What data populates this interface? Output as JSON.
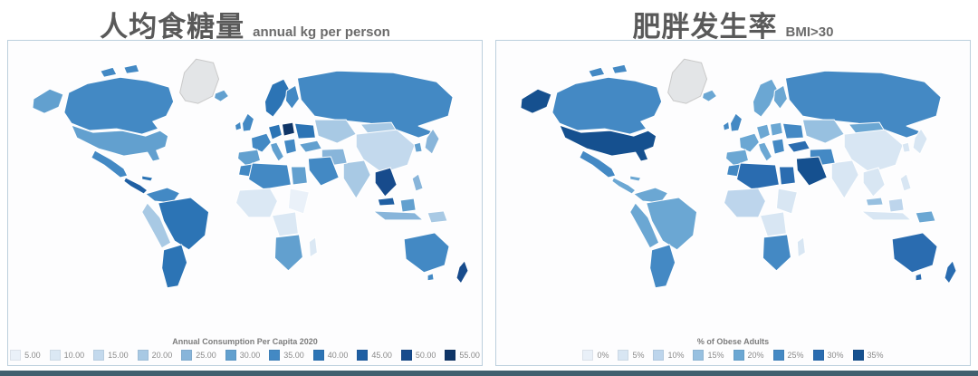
{
  "theme": {
    "background": "#ffffff",
    "panel_border": "#bcd0dd",
    "title_color": "#595959",
    "legend_text_color": "#7c7c7c",
    "no_data_color": "#e3e5e7",
    "bottom_bar_color": "#41606f"
  },
  "chart_data": [
    {
      "type": "choropleth",
      "title": "人均食糖量",
      "subtitle": "annual kg per person",
      "legend_title": "Annual Consumption Per Capita 2020",
      "legend_position": "bottom",
      "bins": [
        {
          "label": "5.00",
          "color": "#eaf1f9"
        },
        {
          "label": "10.00",
          "color": "#dbe8f4"
        },
        {
          "label": "15.00",
          "color": "#c3d9ed"
        },
        {
          "label": "20.00",
          "color": "#a8c9e4"
        },
        {
          "label": "25.00",
          "color": "#88b5da"
        },
        {
          "label": "30.00",
          "color": "#62a0cf"
        },
        {
          "label": "35.00",
          "color": "#4389c4"
        },
        {
          "label": "40.00",
          "color": "#2c74b5"
        },
        {
          "label": "45.00",
          "color": "#1f5fa3"
        },
        {
          "label": "50.00",
          "color": "#174b8c"
        },
        {
          "label": "55.00",
          "color": "#0f3567"
        }
      ],
      "no_data_regions": [
        "greenland"
      ],
      "values": {
        "greenland": null,
        "iceland": 30,
        "canada": 35,
        "canada-arctic-1": 35,
        "canada-arctic-2": 35,
        "alaska": 30,
        "usa": 30,
        "mexico": 35,
        "central-america": 45,
        "caribbean": 40,
        "colombia-venezuela": 35,
        "brazil": 40,
        "andes": 20,
        "argentina-chile": 40,
        "uk": 35,
        "ireland": 35,
        "scandinavia": 40,
        "finland": 35,
        "france": 35,
        "germany": 40,
        "poland": 55,
        "ukraine": 40,
        "iberia": 30,
        "italy": 30,
        "balkans": 35,
        "russia": 35,
        "central-asia": 20,
        "china": 15,
        "mongolia": 20,
        "japan": 25,
        "korea": 30,
        "india": 20,
        "turkey": 30,
        "iran": 25,
        "middle-east": 35,
        "morocco": 35,
        "algeria-libya": 35,
        "egypt": 30,
        "west-africa": 10,
        "east-africa": 5,
        "central-africa": 10,
        "southern-africa": 30,
        "madagascar": 10,
        "se-asia": 50,
        "malaysia": 45,
        "borneo": 30,
        "indonesia": 25,
        "new-guinea": 20,
        "philippines": 25,
        "australia": 35,
        "tasmania": 35,
        "new-zealand": 50
      }
    },
    {
      "type": "choropleth",
      "title": "肥胖发生率",
      "subtitle": "BMI>30",
      "legend_title": "% of Obese Adults",
      "legend_position": "bottom",
      "bins": [
        {
          "label": "0%",
          "color": "#e9f0f8"
        },
        {
          "label": "5%",
          "color": "#d8e6f3"
        },
        {
          "label": "10%",
          "color": "#bdd5ec"
        },
        {
          "label": "15%",
          "color": "#97c0e0"
        },
        {
          "label": "20%",
          "color": "#6ba7d3"
        },
        {
          "label": "25%",
          "color": "#4489c4"
        },
        {
          "label": "30%",
          "color": "#2a6cb0"
        },
        {
          "label": "35%",
          "color": "#15508f"
        }
      ],
      "no_data_regions": [
        "greenland"
      ],
      "values": {
        "greenland": null,
        "iceland": 20,
        "canada": 25,
        "canada-arctic-1": 25,
        "canada-arctic-2": 25,
        "alaska": 35,
        "usa": 35,
        "mexico": 25,
        "central-america": 20,
        "caribbean": 20,
        "colombia-venezuela": 20,
        "brazil": 20,
        "andes": 20,
        "argentina-chile": 25,
        "uk": 25,
        "ireland": 25,
        "scandinavia": 20,
        "finland": 20,
        "france": 20,
        "germany": 20,
        "poland": 20,
        "ukraine": 25,
        "iberia": 20,
        "italy": 20,
        "balkans": 25,
        "russia": 25,
        "central-asia": 15,
        "china": 5,
        "mongolia": 20,
        "japan": 5,
        "korea": 5,
        "india": 5,
        "turkey": 30,
        "iran": 25,
        "middle-east": 35,
        "morocco": 25,
        "algeria-libya": 30,
        "egypt": 30,
        "west-africa": 10,
        "east-africa": 5,
        "central-africa": 5,
        "southern-africa": 25,
        "madagascar": 5,
        "se-asia": 5,
        "malaysia": 15,
        "borneo": 10,
        "indonesia": 5,
        "new-guinea": 20,
        "philippines": 5,
        "australia": 30,
        "tasmania": 30,
        "new-zealand": 30
      }
    }
  ]
}
